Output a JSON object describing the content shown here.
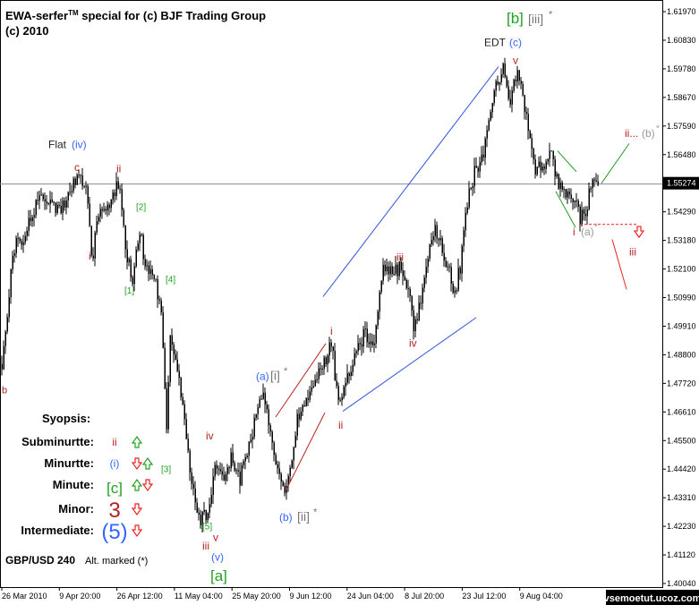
{
  "header": {
    "title_line1": "EWA-serfer",
    "title_tm": "TM",
    "title_line1_rest": " special for (c) BJF Trading Group",
    "title_line2": "(c) 2010"
  },
  "footer": {
    "symbol": "GBP/USD 240",
    "alt_note": "Alt. marked (*)",
    "watermark": "vsemoetut.ucoz.com"
  },
  "synopsis": {
    "heading": "Syopsis:",
    "rows": [
      {
        "label": "Subminurtte:",
        "wave": "ii",
        "wave_color": "#b22222",
        "arrows": [
          "up"
        ]
      },
      {
        "label": "Minurtte:",
        "wave": "(i)",
        "wave_color": "#3366ff",
        "arrows": [
          "down",
          "up"
        ]
      },
      {
        "label": "Minute:",
        "wave": "[c]",
        "wave_color": "#22a022",
        "arrows": [
          "up",
          "down"
        ]
      },
      {
        "label": "Minor:",
        "wave": "3",
        "wave_color": "#b22222",
        "arrows": [
          "down"
        ]
      },
      {
        "label": "Intermediate:",
        "wave": "(5)",
        "wave_color": "#3366ff",
        "arrows": [
          "down"
        ]
      }
    ]
  },
  "chart_data": {
    "type": "candlestick",
    "ylim": [
      1.4001,
      1.6186
    ],
    "y_ticks": [
      "1.61970",
      "1.60830",
      "1.59780",
      "1.58670",
      "1.57590",
      "1.56480",
      "1.55274",
      "1.54290",
      "1.53180",
      "1.52100",
      "1.50990",
      "1.49910",
      "1.48800",
      "1.47720",
      "1.46610",
      "1.45500",
      "1.44420",
      "1.43310",
      "1.42230",
      "1.41120",
      "1.40040"
    ],
    "current_price": 1.55274,
    "x_ticks": [
      "26 Mar 2010",
      "9 Apr 20:00",
      "26 Apr 12:00",
      "11 May 04:00",
      "25 May 20:00",
      "9 Jun 12:00",
      "24 Jun 04:00",
      "8 Jul 20:00",
      "23 Jul 12:00",
      "9 Aug 04:00"
    ],
    "path": [
      [
        0,
        1.482
      ],
      [
        3,
        1.485
      ],
      [
        15,
        1.528
      ],
      [
        30,
        1.535
      ],
      [
        45,
        1.549
      ],
      [
        55,
        1.545
      ],
      [
        68,
        1.542
      ],
      [
        78,
        1.55
      ],
      [
        88,
        1.556
      ],
      [
        97,
        1.55
      ],
      [
        103,
        1.524
      ],
      [
        110,
        1.542
      ],
      [
        122,
        1.544
      ],
      [
        133,
        1.554
      ],
      [
        140,
        1.53
      ],
      [
        148,
        1.513
      ],
      [
        155,
        1.536
      ],
      [
        163,
        1.521
      ],
      [
        172,
        1.518
      ],
      [
        180,
        1.505
      ],
      [
        186,
        1.462
      ],
      [
        190,
        1.494
      ],
      [
        197,
        1.485
      ],
      [
        204,
        1.466
      ],
      [
        212,
        1.445
      ],
      [
        222,
        1.425
      ],
      [
        232,
        1.427
      ],
      [
        240,
        1.444
      ],
      [
        250,
        1.438
      ],
      [
        258,
        1.449
      ],
      [
        268,
        1.44
      ],
      [
        280,
        1.455
      ],
      [
        290,
        1.472
      ],
      [
        297,
        1.471
      ],
      [
        303,
        1.452
      ],
      [
        310,
        1.446
      ],
      [
        318,
        1.437
      ],
      [
        326,
        1.45
      ],
      [
        332,
        1.462
      ],
      [
        340,
        1.47
      ],
      [
        350,
        1.478
      ],
      [
        362,
        1.484
      ],
      [
        370,
        1.493
      ],
      [
        378,
        1.468
      ],
      [
        388,
        1.478
      ],
      [
        398,
        1.49
      ],
      [
        408,
        1.496
      ],
      [
        418,
        1.49
      ],
      [
        428,
        1.521
      ],
      [
        438,
        1.519
      ],
      [
        448,
        1.521
      ],
      [
        456,
        1.512
      ],
      [
        462,
        1.497
      ],
      [
        470,
        1.51
      ],
      [
        478,
        1.525
      ],
      [
        486,
        1.537
      ],
      [
        492,
        1.53
      ],
      [
        500,
        1.522
      ],
      [
        508,
        1.511
      ],
      [
        515,
        1.523
      ],
      [
        522,
        1.545
      ],
      [
        530,
        1.558
      ],
      [
        538,
        1.562
      ],
      [
        546,
        1.575
      ],
      [
        554,
        1.592
      ],
      [
        562,
        1.596
      ],
      [
        570,
        1.585
      ],
      [
        578,
        1.597
      ],
      [
        586,
        1.581
      ],
      [
        592,
        1.57
      ],
      [
        598,
        1.559
      ],
      [
        606,
        1.558
      ],
      [
        614,
        1.567
      ],
      [
        622,
        1.555
      ],
      [
        630,
        1.55
      ],
      [
        640,
        1.548
      ],
      [
        648,
        1.54
      ],
      [
        655,
        1.544
      ],
      [
        660,
        1.554
      ],
      [
        668,
        1.55
      ]
    ],
    "trendlines": [
      {
        "from": [
          361,
          1.5097
        ],
        "to": [
          557,
          1.5976
        ],
        "color": "#3355dd"
      },
      {
        "from": [
          383,
          1.4659
        ],
        "to": [
          532,
          1.5017
        ],
        "color": "#3355dd"
      },
      {
        "from": [
          308,
          1.4637
        ],
        "to": [
          364,
          1.4918
        ],
        "color": "#bb2222"
      },
      {
        "from": [
          320,
          1.4361
        ],
        "to": [
          363,
          1.4654
        ],
        "color": "#bb2222"
      },
      {
        "from": [
          623,
          1.5654
        ],
        "to": [
          644,
          1.5574
        ],
        "color": "#229922"
      },
      {
        "from": [
          621,
          1.5499
        ],
        "to": [
          643,
          1.5362
        ],
        "color": "#229922"
      },
      {
        "from": [
          672,
          1.553
        ],
        "to": [
          703,
          1.5682
        ],
        "color": "#229922"
      },
      {
        "from": [
          684,
          1.5316
        ],
        "to": [
          700,
          1.5125
        ],
        "color": "#ee2222"
      }
    ],
    "dashed_levels": [
      {
        "from": 648,
        "to": 713,
        "y": 1.5373,
        "color": "#ee2222"
      }
    ],
    "annotations": [
      {
        "text": "Flat",
        "x": 54,
        "y": 1.5664,
        "color": "#222222",
        "size": 12
      },
      {
        "text": "(iv)",
        "x": 80,
        "y": 1.5664,
        "color": "#3366ff",
        "size": 12
      },
      {
        "text": "c",
        "x": 83,
        "y": 1.5577,
        "color": "#b22222",
        "size": 12
      },
      {
        "text": "ii",
        "x": 130,
        "y": 1.5572,
        "color": "#b22222",
        "size": 12
      },
      {
        "text": "[2]",
        "x": 152,
        "y": 1.5429,
        "color": "#22a022",
        "size": 10
      },
      {
        "text": "i",
        "x": 99,
        "y": 1.5239,
        "color": "#b22222",
        "size": 12
      },
      {
        "text": "[1]",
        "x": 139,
        "y": 1.5109,
        "color": "#22a022",
        "size": 10
      },
      {
        "text": "[4]",
        "x": 185,
        "y": 1.5152,
        "color": "#22a022",
        "size": 10
      },
      {
        "text": "[3]",
        "x": 180,
        "y": 1.4426,
        "color": "#22a022",
        "size": 10
      },
      {
        "text": "iv",
        "x": 230,
        "y": 1.4551,
        "color": "#b22222",
        "size": 12
      },
      {
        "text": "[5]",
        "x": 226,
        "y": 1.4208,
        "color": "#22a022",
        "size": 10
      },
      {
        "text": "v",
        "x": 238,
        "y": 1.4164,
        "color": "#b22222",
        "size": 12
      },
      {
        "text": "iii",
        "x": 226,
        "y": 1.4131,
        "color": "#b22222",
        "size": 12
      },
      {
        "text": "(v)",
        "x": 236,
        "y": 1.4088,
        "color": "#3366ff",
        "size": 12
      },
      {
        "text": "[a]",
        "x": 235,
        "y": 1.4011,
        "color": "#22a022",
        "size": 17
      },
      {
        "text": "(a)",
        "x": 286,
        "y": 1.4779,
        "color": "#3366ff",
        "size": 12
      },
      {
        "text": "[i]",
        "x": 302,
        "y": 1.4779,
        "color": "#777777",
        "size": 14
      },
      {
        "text": "*",
        "x": 317,
        "y": 1.4801,
        "color": "#777777",
        "size": 11
      },
      {
        "text": "(b)",
        "x": 312,
        "y": 1.4241,
        "color": "#3366ff",
        "size": 12
      },
      {
        "text": "[ii]",
        "x": 332,
        "y": 1.4241,
        "color": "#777777",
        "size": 14
      },
      {
        "text": "*",
        "x": 350,
        "y": 1.4263,
        "color": "#777777",
        "size": 11
      },
      {
        "text": "i",
        "x": 369,
        "y": 1.4952,
        "color": "#b22222",
        "size": 12
      },
      {
        "text": "ii",
        "x": 378,
        "y": 1.4593,
        "color": "#b22222",
        "size": 12
      },
      {
        "text": "iii",
        "x": 443,
        "y": 1.5233,
        "color": "#b22222",
        "size": 12
      },
      {
        "text": "iv",
        "x": 457,
        "y": 1.4906,
        "color": "#b22222",
        "size": 12
      },
      {
        "text": "EDT",
        "x": 541,
        "y": 1.6055,
        "color": "#222222",
        "size": 12
      },
      {
        "text": "(c)",
        "x": 569,
        "y": 1.6055,
        "color": "#3366ff",
        "size": 12
      },
      {
        "text": "v",
        "x": 573,
        "y": 1.5986,
        "color": "#b22222",
        "size": 12
      },
      {
        "text": "[b]",
        "x": 566,
        "y": 1.6142,
        "color": "#22a022",
        "size": 17
      },
      {
        "text": "[iii]",
        "x": 590,
        "y": 1.6142,
        "color": "#777777",
        "size": 14
      },
      {
        "text": "*",
        "x": 613,
        "y": 1.6164,
        "color": "#777777",
        "size": 11
      },
      {
        "text": "ii...",
        "x": 698,
        "y": 1.5707,
        "color": "#b22222",
        "size": 12
      },
      {
        "text": "(b)",
        "x": 717,
        "y": 1.5707,
        "color": "#999999",
        "size": 12
      },
      {
        "text": "*",
        "x": 733,
        "y": 1.5729,
        "color": "#999999",
        "size": 10
      },
      {
        "text": "i",
        "x": 640,
        "y": 1.5331,
        "color": "#b22222",
        "size": 12
      },
      {
        "text": "(a)",
        "x": 649,
        "y": 1.5331,
        "color": "#999999",
        "size": 12
      },
      {
        "text": "*",
        "x": 664,
        "y": 1.5353,
        "color": "#999999",
        "size": 10
      },
      {
        "text": "iii",
        "x": 703,
        "y": 1.5255,
        "color": "#b22222",
        "size": 12
      },
      {
        "text": "b",
        "x": 2,
        "y": 1.4727,
        "color": "#b22222",
        "size": 11
      }
    ],
    "arrow_marks": [
      {
        "dir": "down",
        "x": 709,
        "y": 1.5331,
        "color": "#ee2222"
      }
    ]
  },
  "colors": {
    "candles": "#000000",
    "grid_line": "#8a8aa6",
    "price_box_bg": "#000000",
    "price_box_fg": "#ffffff",
    "arrow_up": "#22a022",
    "arrow_down": "#ee2222"
  }
}
